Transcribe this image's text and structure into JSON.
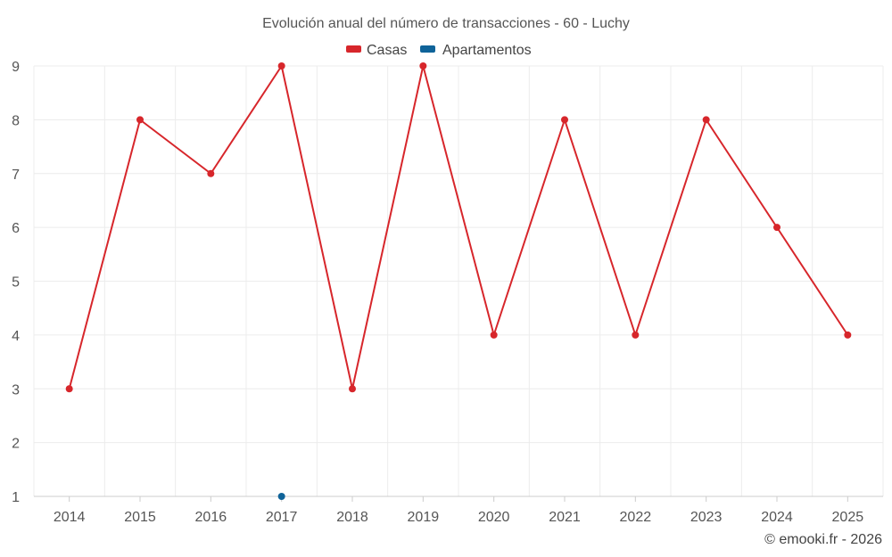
{
  "chart_data": {
    "type": "line",
    "title": "Evolución anual del número de transacciones - 60 - Luchy",
    "categories": [
      "2014",
      "2015",
      "2016",
      "2017",
      "2018",
      "2019",
      "2020",
      "2021",
      "2022",
      "2023",
      "2024",
      "2025"
    ],
    "ylim": [
      1,
      9
    ],
    "yticks": [
      "1",
      "2",
      "3",
      "4",
      "5",
      "6",
      "7",
      "8",
      "9"
    ],
    "grid": true,
    "legend_position": "top",
    "series": [
      {
        "name": "Casas",
        "color": "#d7262b",
        "values": [
          3,
          8,
          7,
          9,
          3,
          9,
          4,
          8,
          4,
          8,
          6,
          4
        ]
      },
      {
        "name": "Apartamentos",
        "color": "#0f6399",
        "values": [
          null,
          null,
          null,
          1,
          null,
          null,
          null,
          null,
          null,
          null,
          null,
          null
        ]
      }
    ],
    "credit": "© emooki.fr - 2026"
  }
}
